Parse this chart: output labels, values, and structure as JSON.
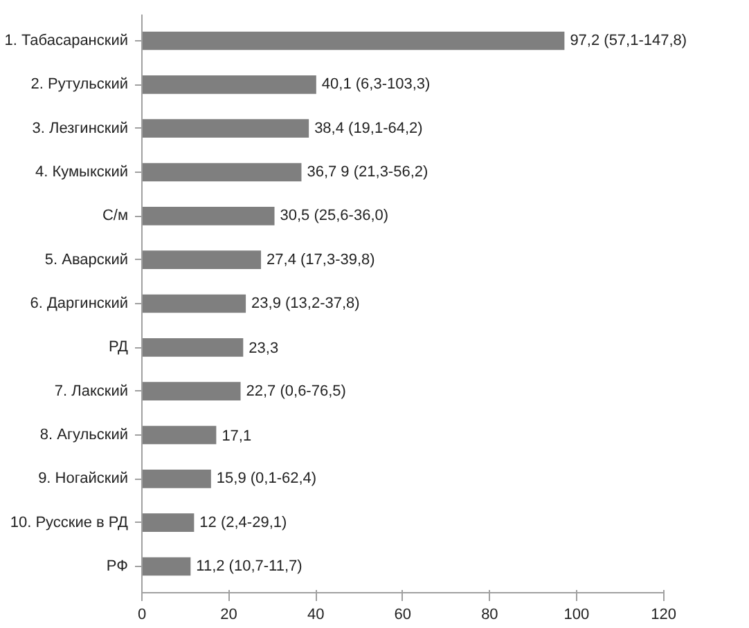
{
  "chart_data": {
    "type": "bar",
    "orientation": "horizontal",
    "categories": [
      "1. Табасаранский",
      "2. Рутульский",
      "3. Лезгинский",
      "4. Кумыкский",
      "С/м",
      "5. Аварский",
      "6. Даргинский",
      "РД",
      "7. Лакский",
      "8. Агульский",
      "9. Ногайский",
      "10. Русские в РД",
      "РФ"
    ],
    "values": [
      97.2,
      40.1,
      38.4,
      36.7,
      30.5,
      27.4,
      23.9,
      23.3,
      22.7,
      17.1,
      15.9,
      12,
      11.2
    ],
    "value_labels": [
      "97,2 (57,1-147,8)",
      "40,1 (6,3-103,3)",
      "38,4 (19,1-64,2)",
      "36,7 9 (21,3-56,2)",
      "30,5 (25,6-36,0)",
      "27,4 (17,3-39,8)",
      "23,9 (13,2-37,8)",
      "23,3",
      "22,7 (0,6-76,5)",
      "17,1",
      "15,9 (0,1-62,4)",
      "12 (2,4-29,1)",
      "11,2 (10,7-11,7)"
    ],
    "color": "#7f7f7f",
    "xlim": [
      0,
      120
    ],
    "xticks": [
      0,
      20,
      40,
      60,
      80,
      100,
      120
    ],
    "grid": false
  }
}
